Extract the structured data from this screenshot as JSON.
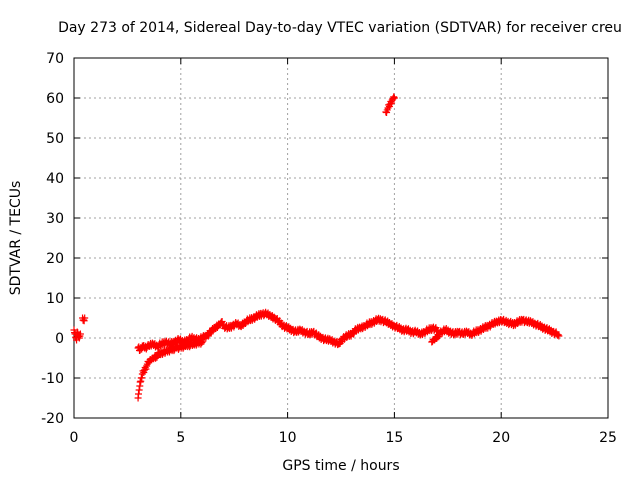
{
  "chart_data": {
    "type": "scatter",
    "title": "Day 273 of 2014, Sidereal Day-to-day VTEC variation (SDTVAR) for receiver creu",
    "xlabel": "GPS time / hours",
    "ylabel": "SDTVAR / TECUs",
    "xlim": [
      0,
      25
    ],
    "ylim": [
      -20,
      70
    ],
    "xticks": [
      0,
      5,
      10,
      15,
      20,
      25
    ],
    "yticks": [
      -20,
      -10,
      0,
      10,
      20,
      30,
      40,
      50,
      60,
      70
    ],
    "grid": true,
    "marker": "+",
    "color": "#ff0000",
    "series": [
      {
        "name": "SDTVAR",
        "points": [
          [
            0.0,
            2.0
          ],
          [
            0.05,
            1.0
          ],
          [
            0.1,
            0.0
          ],
          [
            0.12,
            -0.5
          ],
          [
            0.15,
            1.5
          ],
          [
            0.2,
            0.5
          ],
          [
            0.25,
            0.0
          ],
          [
            0.3,
            1.0
          ],
          [
            0.4,
            5.0
          ],
          [
            0.45,
            4.5
          ],
          [
            0.5,
            5.0
          ],
          [
            3.0,
            -15.0
          ],
          [
            3.02,
            -14.0
          ],
          [
            3.05,
            -13.0
          ],
          [
            3.08,
            -12.0
          ],
          [
            3.1,
            -11.0
          ],
          [
            3.15,
            -10.0
          ],
          [
            3.2,
            -9.0
          ],
          [
            3.3,
            -8.0
          ],
          [
            3.4,
            -7.0
          ],
          [
            3.5,
            -6.0
          ],
          [
            3.6,
            -5.5
          ],
          [
            3.7,
            -5.0
          ],
          [
            3.85,
            -4.5
          ],
          [
            4.0,
            -4.0
          ],
          [
            4.2,
            -3.5
          ],
          [
            4.5,
            -3.0
          ],
          [
            4.8,
            -2.5
          ],
          [
            5.2,
            -2.0
          ],
          [
            5.6,
            -1.5
          ],
          [
            6.0,
            -1.0
          ],
          [
            3.0,
            -2.5
          ],
          [
            3.1,
            -3.0
          ],
          [
            3.2,
            -2.0
          ],
          [
            3.3,
            -2.5
          ],
          [
            3.5,
            -2.0
          ],
          [
            3.7,
            -1.5
          ],
          [
            3.9,
            -2.0
          ],
          [
            4.1,
            -1.5
          ],
          [
            4.3,
            -1.0
          ],
          [
            4.5,
            -1.5
          ],
          [
            4.7,
            -1.0
          ],
          [
            4.9,
            -0.5
          ],
          [
            5.1,
            -1.0
          ],
          [
            5.3,
            -0.5
          ],
          [
            5.5,
            0.0
          ],
          [
            5.8,
            -0.5
          ],
          [
            6.0,
            0.0
          ],
          [
            6.2,
            0.5
          ],
          [
            6.4,
            1.5
          ],
          [
            6.6,
            2.5
          ],
          [
            6.8,
            3.5
          ],
          [
            6.9,
            4.0
          ],
          [
            7.0,
            3.0
          ],
          [
            7.2,
            2.5
          ],
          [
            7.4,
            3.0
          ],
          [
            7.6,
            3.5
          ],
          [
            7.8,
            3.0
          ],
          [
            8.0,
            4.0
          ],
          [
            8.2,
            4.5
          ],
          [
            8.4,
            5.0
          ],
          [
            8.6,
            5.5
          ],
          [
            8.8,
            6.0
          ],
          [
            9.0,
            6.0
          ],
          [
            9.2,
            5.5
          ],
          [
            9.4,
            5.0
          ],
          [
            9.6,
            4.0
          ],
          [
            9.8,
            3.0
          ],
          [
            10.0,
            2.5
          ],
          [
            10.2,
            2.0
          ],
          [
            10.4,
            1.5
          ],
          [
            10.6,
            2.0
          ],
          [
            10.8,
            1.5
          ],
          [
            11.0,
            1.0
          ],
          [
            11.2,
            1.5
          ],
          [
            11.4,
            0.5
          ],
          [
            11.6,
            0.0
          ],
          [
            11.8,
            -0.5
          ],
          [
            12.0,
            -0.5
          ],
          [
            12.2,
            -1.0
          ],
          [
            12.4,
            -1.5
          ],
          [
            12.6,
            0.0
          ],
          [
            12.8,
            0.5
          ],
          [
            13.0,
            1.0
          ],
          [
            13.2,
            2.0
          ],
          [
            13.4,
            2.5
          ],
          [
            13.6,
            3.0
          ],
          [
            13.8,
            3.5
          ],
          [
            14.0,
            4.0
          ],
          [
            14.2,
            4.5
          ],
          [
            14.4,
            4.5
          ],
          [
            14.6,
            4.0
          ],
          [
            14.8,
            3.5
          ],
          [
            15.0,
            3.0
          ],
          [
            15.2,
            2.5
          ],
          [
            15.4,
            2.0
          ],
          [
            15.6,
            2.0
          ],
          [
            15.8,
            1.5
          ],
          [
            16.0,
            1.5
          ],
          [
            16.2,
            1.0
          ],
          [
            16.4,
            1.5
          ],
          [
            16.6,
            2.0
          ],
          [
            16.8,
            2.5
          ],
          [
            17.0,
            2.0
          ],
          [
            16.75,
            -1.0
          ],
          [
            16.85,
            -0.5
          ],
          [
            16.95,
            0.0
          ],
          [
            17.2,
            1.5
          ],
          [
            17.4,
            2.0
          ],
          [
            17.6,
            1.5
          ],
          [
            17.8,
            1.0
          ],
          [
            18.0,
            1.5
          ],
          [
            18.2,
            1.0
          ],
          [
            18.4,
            1.5
          ],
          [
            18.6,
            1.0
          ],
          [
            18.8,
            1.5
          ],
          [
            19.0,
            2.0
          ],
          [
            19.2,
            2.5
          ],
          [
            19.4,
            3.0
          ],
          [
            19.6,
            3.5
          ],
          [
            19.8,
            4.0
          ],
          [
            20.0,
            4.5
          ],
          [
            20.2,
            4.0
          ],
          [
            20.6,
            3.5
          ],
          [
            20.8,
            4.0
          ],
          [
            21.0,
            4.5
          ],
          [
            21.2,
            4.0
          ],
          [
            21.4,
            4.0
          ],
          [
            21.6,
            3.5
          ],
          [
            21.8,
            3.0
          ],
          [
            22.0,
            2.5
          ],
          [
            22.2,
            2.0
          ],
          [
            22.4,
            1.5
          ],
          [
            22.6,
            1.0
          ],
          [
            22.7,
            0.5
          ],
          [
            14.6,
            56.5
          ],
          [
            14.7,
            57.5
          ],
          [
            14.8,
            58.5
          ],
          [
            14.9,
            59.5
          ],
          [
            15.0,
            60.0
          ]
        ]
      }
    ]
  }
}
